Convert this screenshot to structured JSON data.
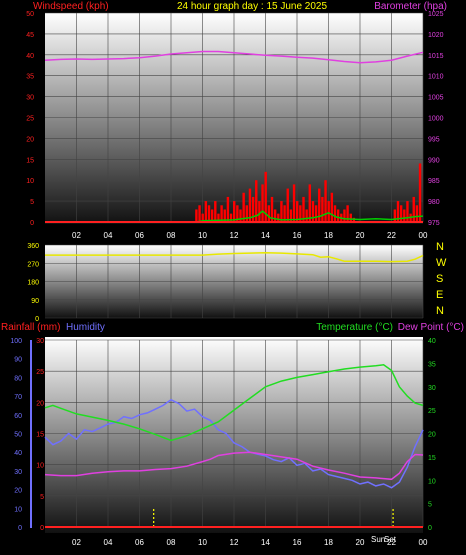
{
  "title": "24 hour graph day : 15 June 2025",
  "colors": {
    "wind": "#ff0000",
    "gust_line": "#00cc00",
    "barometer": "#e040e0",
    "direction": "#e8e800",
    "rain": "#ff2020",
    "humidity": "#7070ff",
    "temperature": "#22dd22",
    "dewpoint": "#e040e0",
    "marker": "#ffff00"
  },
  "chart_data": [
    {
      "type": "bar",
      "title": "24 hour graph day : 15 June 2025",
      "left_label": "Windspeed (kph)",
      "right_label": "Barometer (hpa)",
      "left_ticks": [
        "0",
        "5",
        "10",
        "15",
        "20",
        "25",
        "30",
        "35",
        "40",
        "45",
        "50"
      ],
      "right_ticks": [
        "975",
        "980",
        "985",
        "990",
        "995",
        "1000",
        "1005",
        "1010",
        "1015",
        "1020",
        "1025"
      ],
      "x_ticks": [
        "02",
        "04",
        "06",
        "08",
        "10",
        "12",
        "14",
        "16",
        "18",
        "20",
        "22",
        "00"
      ],
      "ylim_left": [
        0,
        50
      ],
      "ylim_right": [
        975,
        1025
      ],
      "wind": {
        "x": [
          9.6,
          9.8,
          10.0,
          10.2,
          10.4,
          10.6,
          10.8,
          11.0,
          11.2,
          11.4,
          11.6,
          11.8,
          12.0,
          12.2,
          12.4,
          12.6,
          12.8,
          13.0,
          13.2,
          13.4,
          13.6,
          13.8,
          14.0,
          14.2,
          14.4,
          14.6,
          14.8,
          15.0,
          15.2,
          15.4,
          15.6,
          15.8,
          16.0,
          16.2,
          16.4,
          16.6,
          16.8,
          17.0,
          17.2,
          17.4,
          17.6,
          17.8,
          18.0,
          18.2,
          18.4,
          18.6,
          18.8,
          19.0,
          19.2,
          19.4,
          19.6,
          22.2,
          22.4,
          22.6,
          22.8,
          23.0,
          23.2,
          23.4,
          23.6,
          23.8
        ],
        "values": [
          3,
          4,
          2,
          5,
          4,
          3,
          5,
          2,
          4,
          3,
          6,
          2,
          5,
          4,
          3,
          7,
          4,
          8,
          6,
          10,
          5,
          9,
          12,
          4,
          6,
          3,
          2,
          5,
          4,
          8,
          3,
          9,
          5,
          4,
          6,
          3,
          9,
          5,
          4,
          8,
          6,
          10,
          5,
          7,
          4,
          3,
          2,
          3,
          4,
          2,
          1,
          3,
          5,
          4,
          3,
          5,
          2,
          6,
          4,
          14
        ]
      },
      "gust_line": {
        "x": [
          0,
          9.6,
          10,
          11,
          12,
          12.5,
          13,
          13.5,
          13.8,
          14,
          14.3,
          15,
          16,
          17,
          17.5,
          18,
          18.5,
          19,
          20,
          21,
          22,
          23,
          23.5,
          24
        ],
        "values": [
          0,
          0,
          0.3,
          0.4,
          0.5,
          0.8,
          1,
          1.6,
          2.6,
          2,
          1,
          0.5,
          0.6,
          1,
          1.4,
          2.2,
          1.2,
          0.8,
          0.6,
          0.8,
          0.6,
          1,
          1.3,
          1.4
        ]
      },
      "barometer": {
        "x": [
          0,
          1,
          2,
          3,
          4,
          5,
          6,
          7,
          8,
          9,
          10,
          11,
          12,
          13,
          14,
          15,
          16,
          17,
          18,
          19,
          20,
          21,
          22,
          23,
          24
        ],
        "values": [
          1013.7,
          1013.9,
          1014.0,
          1013.9,
          1014.0,
          1014.1,
          1014.3,
          1014.7,
          1015.2,
          1015.5,
          1015.8,
          1015.8,
          1015.5,
          1015.2,
          1014.9,
          1014.7,
          1014.4,
          1014.2,
          1013.8,
          1013.4,
          1013.1,
          1013.3,
          1013.7,
          1014.7,
          1015.6
        ]
      }
    },
    {
      "type": "line",
      "left_ticks": [
        "0",
        "90",
        "180",
        "270",
        "360"
      ],
      "right_ticks": [
        "N",
        "W",
        "S",
        "E",
        "N"
      ],
      "ylim": [
        0,
        360
      ],
      "direction": {
        "x": [
          0,
          2,
          4,
          6,
          8,
          9,
          10,
          11,
          12,
          13,
          14,
          15,
          16,
          17,
          17.5,
          18,
          18.5,
          19,
          20,
          21,
          22,
          23,
          23.5,
          24
        ],
        "values": [
          310,
          310,
          310,
          310,
          310,
          310,
          310,
          315,
          318,
          320,
          322,
          320,
          316,
          312,
          300,
          302,
          292,
          280,
          280,
          280,
          278,
          280,
          290,
          308
        ]
      }
    },
    {
      "type": "line",
      "legend": [
        "Rainfall (mm)",
        "Humidity",
        "Temperature (°C)",
        "Dew Point (°C)"
      ],
      "humidity_ticks": [
        "0",
        "10",
        "20",
        "30",
        "40",
        "50",
        "60",
        "70",
        "80",
        "90",
        "100"
      ],
      "rain_ticks": [
        "0",
        "5",
        "10",
        "15",
        "20",
        "25",
        "30"
      ],
      "temp_ticks": [
        "0",
        "5",
        "10",
        "15",
        "20",
        "25",
        "30",
        "35",
        "40"
      ],
      "x_ticks": [
        "02",
        "04",
        "06",
        "08",
        "10",
        "12",
        "14",
        "16",
        "18",
        "20",
        "Sun",
        "22",
        "00"
      ],
      "sun_labels": [
        "Sun",
        "Set"
      ],
      "ylim_humidity": [
        0,
        100
      ],
      "ylim_rain": [
        0,
        30
      ],
      "ylim_temp": [
        0,
        40
      ],
      "sun_markers": [
        6.9,
        22.1
      ],
      "humidity": {
        "x": [
          0,
          0.5,
          1,
          1.5,
          2,
          2.5,
          3,
          3.5,
          4,
          4.5,
          5,
          5.5,
          6,
          6.5,
          7,
          7.5,
          8,
          8.5,
          9,
          9.5,
          10,
          10.5,
          11,
          11.5,
          12,
          12.5,
          13,
          13.5,
          14,
          14.5,
          15,
          15.5,
          16,
          16.5,
          17,
          17.5,
          18,
          18.5,
          19,
          19.5,
          20,
          20.5,
          21,
          21.5,
          22,
          22.5,
          23,
          23.5,
          24
        ],
        "values": [
          48,
          44,
          46,
          50,
          47,
          52,
          51,
          53,
          55,
          56,
          59,
          58,
          60,
          61,
          63,
          65,
          68,
          66,
          62,
          63,
          59,
          57,
          52,
          50,
          45,
          43,
          40,
          39,
          38,
          36,
          35,
          37,
          33,
          34,
          30,
          31,
          28,
          27,
          26,
          25,
          23,
          24,
          22,
          23,
          21,
          24,
          32,
          43,
          52
        ]
      },
      "temperature": {
        "x": [
          0,
          0.5,
          1,
          2,
          3,
          4,
          5,
          6,
          7,
          8,
          9,
          10,
          11,
          12,
          13,
          14,
          15,
          16,
          17,
          18,
          19,
          20,
          21,
          21.5,
          22,
          22.5,
          23,
          23.5,
          24
        ],
        "values": [
          25.5,
          26,
          25.4,
          24.2,
          23.5,
          22.8,
          22.0,
          21.0,
          19.8,
          18.5,
          19.5,
          21,
          22.5,
          25,
          27.5,
          30,
          31.2,
          32,
          32.6,
          33.2,
          33.8,
          34.2,
          34.5,
          34.7,
          33.5,
          30,
          28,
          26.5,
          26
        ]
      },
      "dewpoint": {
        "x": [
          0,
          1,
          2,
          3,
          4,
          5,
          6,
          7,
          8,
          9,
          10,
          10.5,
          11,
          12,
          13,
          14,
          15,
          16,
          17,
          18,
          19,
          20,
          21,
          22,
          22.5,
          23,
          23.5,
          24
        ],
        "values": [
          11.2,
          11.0,
          11.0,
          11.5,
          11.8,
          12.0,
          12.0,
          12.3,
          12.5,
          13.0,
          14.0,
          14.5,
          15.3,
          15.8,
          16.0,
          15.5,
          15.0,
          14.5,
          13.0,
          12.2,
          11.5,
          10.7,
          10.5,
          10.2,
          11.5,
          14,
          15.5,
          15.4
        ]
      },
      "rain": {
        "x": [
          0,
          24
        ],
        "values": [
          0,
          0
        ]
      }
    }
  ]
}
